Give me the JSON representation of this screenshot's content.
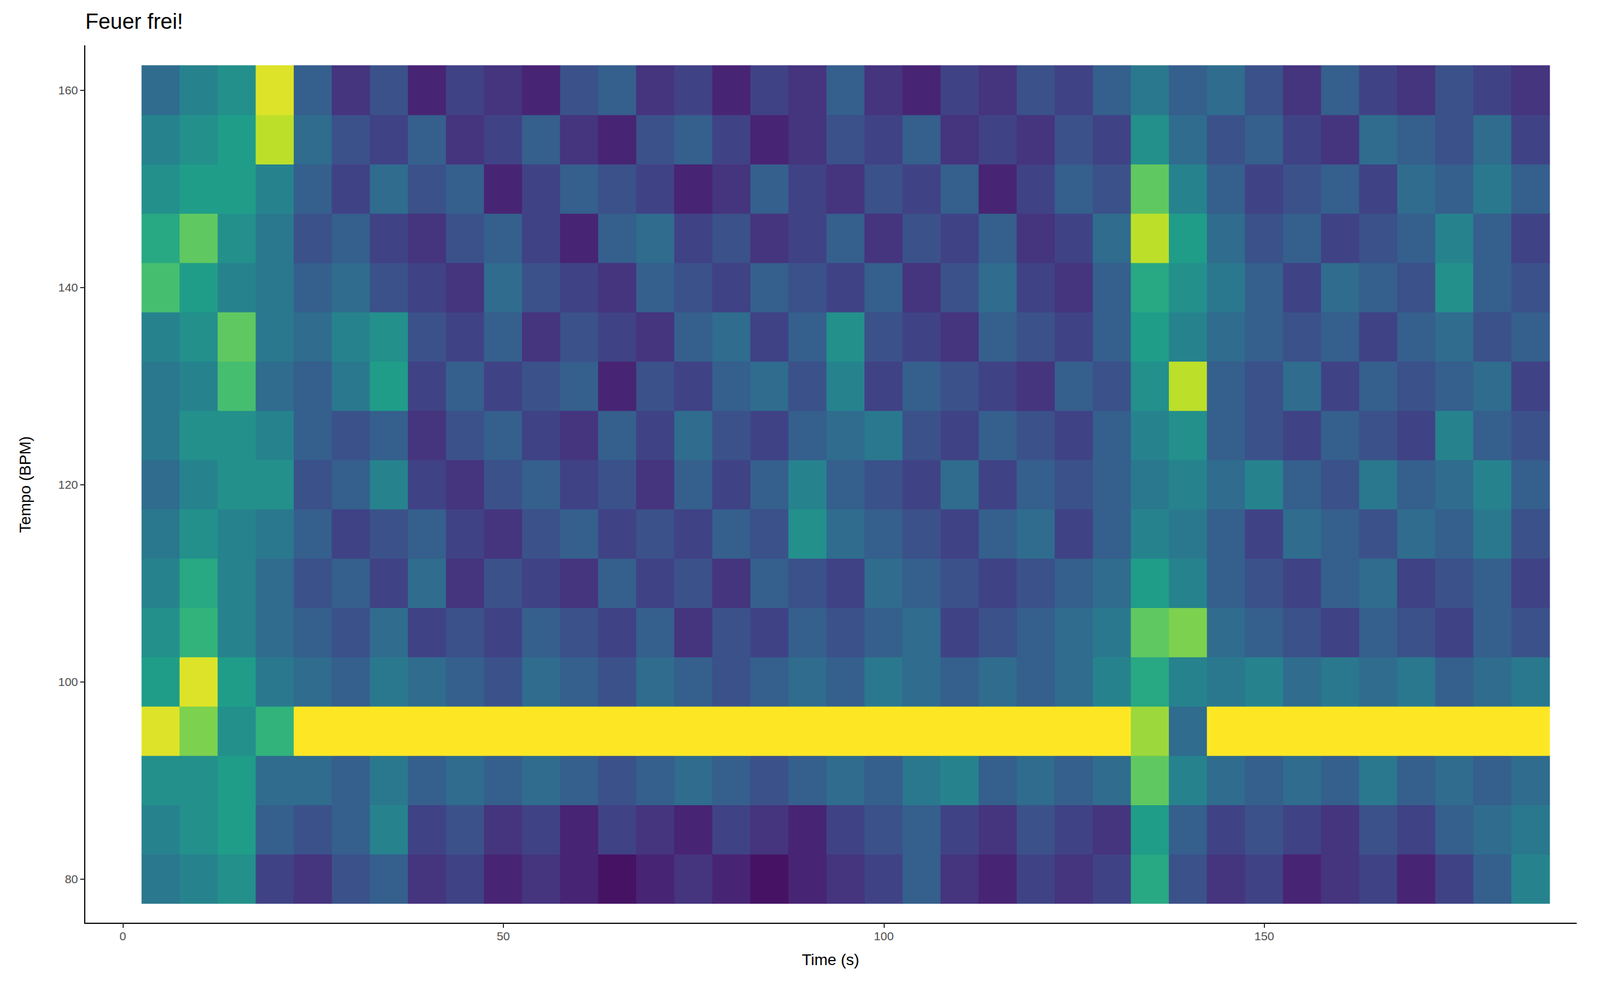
{
  "chart_data": {
    "type": "heatmap",
    "title": "Feuer frei!",
    "x_label": "Time (s)",
    "y_label": "Tempo (BPM)",
    "xlim": [
      -5,
      191
    ],
    "ylim": [
      75.5,
      164.5
    ],
    "xticks": [
      0,
      50,
      100,
      150
    ],
    "yticks": [
      80,
      100,
      120,
      140,
      160
    ],
    "grid": false,
    "zlim": [
      0,
      1
    ],
    "x": [
      5,
      10,
      15,
      20,
      25,
      30,
      35,
      40,
      45,
      50,
      55,
      60,
      65,
      70,
      75,
      80,
      85,
      90,
      95,
      100,
      105,
      110,
      115,
      120,
      125,
      130,
      135,
      140,
      145,
      150,
      155,
      160,
      165,
      170,
      175,
      180,
      185
    ],
    "y": [
      80,
      85,
      90,
      95,
      100,
      105,
      110,
      115,
      120,
      125,
      130,
      135,
      140,
      145,
      150,
      155,
      160
    ],
    "z": [
      [
        0.4,
        0.45,
        0.5,
        0.2,
        0.15,
        0.25,
        0.3,
        0.15,
        0.2,
        0.1,
        0.15,
        0.1,
        0.05,
        0.1,
        0.15,
        0.1,
        0.05,
        0.1,
        0.15,
        0.2,
        0.3,
        0.15,
        0.1,
        0.2,
        0.15,
        0.2,
        0.6,
        0.25,
        0.15,
        0.2,
        0.1,
        0.15,
        0.2,
        0.1,
        0.2,
        0.3,
        0.45
      ],
      [
        0.45,
        0.5,
        0.55,
        0.3,
        0.25,
        0.3,
        0.45,
        0.2,
        0.25,
        0.15,
        0.2,
        0.1,
        0.2,
        0.15,
        0.1,
        0.2,
        0.15,
        0.1,
        0.2,
        0.25,
        0.3,
        0.2,
        0.15,
        0.25,
        0.2,
        0.15,
        0.55,
        0.3,
        0.2,
        0.25,
        0.2,
        0.15,
        0.25,
        0.2,
        0.3,
        0.35,
        0.4
      ],
      [
        0.5,
        0.5,
        0.55,
        0.35,
        0.35,
        0.3,
        0.4,
        0.3,
        0.35,
        0.3,
        0.35,
        0.3,
        0.25,
        0.3,
        0.35,
        0.3,
        0.25,
        0.3,
        0.35,
        0.3,
        0.4,
        0.45,
        0.3,
        0.35,
        0.3,
        0.35,
        0.75,
        0.45,
        0.35,
        0.3,
        0.35,
        0.3,
        0.4,
        0.3,
        0.35,
        0.3,
        0.35
      ],
      [
        0.95,
        0.8,
        0.5,
        0.65,
        1,
        1,
        1,
        1,
        1,
        1,
        1,
        1,
        1,
        1,
        1,
        1,
        1,
        1,
        1,
        1,
        1,
        1,
        1,
        1,
        1,
        1,
        0.85,
        0.35,
        1,
        1,
        1,
        1,
        1,
        1,
        1,
        1,
        1
      ],
      [
        0.55,
        0.95,
        0.55,
        0.4,
        0.35,
        0.3,
        0.4,
        0.35,
        0.3,
        0.25,
        0.35,
        0.3,
        0.25,
        0.35,
        0.3,
        0.25,
        0.3,
        0.35,
        0.3,
        0.4,
        0.35,
        0.3,
        0.35,
        0.3,
        0.35,
        0.45,
        0.6,
        0.45,
        0.4,
        0.45,
        0.35,
        0.4,
        0.35,
        0.4,
        0.3,
        0.35,
        0.4
      ],
      [
        0.5,
        0.65,
        0.45,
        0.35,
        0.3,
        0.25,
        0.35,
        0.2,
        0.25,
        0.2,
        0.3,
        0.25,
        0.2,
        0.3,
        0.15,
        0.25,
        0.2,
        0.3,
        0.25,
        0.3,
        0.35,
        0.2,
        0.25,
        0.3,
        0.35,
        0.4,
        0.75,
        0.8,
        0.35,
        0.3,
        0.25,
        0.2,
        0.3,
        0.25,
        0.2,
        0.3,
        0.25
      ],
      [
        0.45,
        0.6,
        0.45,
        0.35,
        0.25,
        0.3,
        0.2,
        0.35,
        0.15,
        0.25,
        0.2,
        0.15,
        0.3,
        0.2,
        0.25,
        0.15,
        0.3,
        0.25,
        0.2,
        0.35,
        0.3,
        0.25,
        0.2,
        0.25,
        0.3,
        0.35,
        0.55,
        0.45,
        0.3,
        0.25,
        0.2,
        0.3,
        0.35,
        0.2,
        0.25,
        0.3,
        0.2
      ],
      [
        0.4,
        0.5,
        0.45,
        0.4,
        0.3,
        0.2,
        0.25,
        0.3,
        0.2,
        0.15,
        0.25,
        0.3,
        0.2,
        0.25,
        0.2,
        0.3,
        0.25,
        0.5,
        0.35,
        0.3,
        0.25,
        0.2,
        0.3,
        0.35,
        0.2,
        0.3,
        0.45,
        0.4,
        0.3,
        0.2,
        0.35,
        0.3,
        0.25,
        0.35,
        0.3,
        0.4,
        0.25
      ],
      [
        0.35,
        0.45,
        0.5,
        0.5,
        0.25,
        0.3,
        0.45,
        0.2,
        0.15,
        0.25,
        0.3,
        0.2,
        0.25,
        0.15,
        0.3,
        0.2,
        0.3,
        0.45,
        0.3,
        0.25,
        0.2,
        0.35,
        0.2,
        0.3,
        0.25,
        0.3,
        0.4,
        0.45,
        0.35,
        0.45,
        0.3,
        0.25,
        0.4,
        0.3,
        0.35,
        0.45,
        0.3
      ],
      [
        0.4,
        0.5,
        0.5,
        0.45,
        0.3,
        0.25,
        0.3,
        0.15,
        0.25,
        0.3,
        0.2,
        0.15,
        0.3,
        0.2,
        0.35,
        0.25,
        0.2,
        0.3,
        0.35,
        0.4,
        0.25,
        0.2,
        0.3,
        0.25,
        0.2,
        0.3,
        0.45,
        0.5,
        0.3,
        0.25,
        0.2,
        0.3,
        0.25,
        0.2,
        0.45,
        0.3,
        0.25
      ],
      [
        0.4,
        0.45,
        0.7,
        0.35,
        0.3,
        0.4,
        0.55,
        0.2,
        0.3,
        0.2,
        0.25,
        0.3,
        0.1,
        0.25,
        0.2,
        0.3,
        0.35,
        0.25,
        0.45,
        0.2,
        0.3,
        0.25,
        0.2,
        0.15,
        0.3,
        0.25,
        0.5,
        0.9,
        0.3,
        0.25,
        0.35,
        0.2,
        0.3,
        0.25,
        0.3,
        0.35,
        0.2
      ],
      [
        0.45,
        0.5,
        0.75,
        0.4,
        0.35,
        0.45,
        0.5,
        0.25,
        0.2,
        0.3,
        0.15,
        0.25,
        0.2,
        0.15,
        0.3,
        0.35,
        0.2,
        0.3,
        0.5,
        0.25,
        0.2,
        0.15,
        0.3,
        0.25,
        0.2,
        0.3,
        0.55,
        0.45,
        0.35,
        0.3,
        0.25,
        0.3,
        0.2,
        0.3,
        0.35,
        0.25,
        0.3
      ],
      [
        0.7,
        0.55,
        0.45,
        0.4,
        0.3,
        0.35,
        0.25,
        0.2,
        0.15,
        0.35,
        0.25,
        0.2,
        0.15,
        0.3,
        0.25,
        0.2,
        0.3,
        0.25,
        0.2,
        0.3,
        0.15,
        0.25,
        0.35,
        0.2,
        0.15,
        0.3,
        0.6,
        0.5,
        0.4,
        0.3,
        0.2,
        0.35,
        0.3,
        0.25,
        0.5,
        0.3,
        0.25
      ],
      [
        0.6,
        0.75,
        0.5,
        0.4,
        0.25,
        0.3,
        0.2,
        0.15,
        0.25,
        0.3,
        0.2,
        0.1,
        0.3,
        0.35,
        0.2,
        0.25,
        0.15,
        0.2,
        0.3,
        0.15,
        0.25,
        0.2,
        0.3,
        0.15,
        0.2,
        0.35,
        0.9,
        0.55,
        0.35,
        0.25,
        0.3,
        0.2,
        0.25,
        0.3,
        0.45,
        0.3,
        0.2
      ],
      [
        0.5,
        0.55,
        0.55,
        0.45,
        0.3,
        0.2,
        0.35,
        0.25,
        0.3,
        0.1,
        0.2,
        0.3,
        0.25,
        0.2,
        0.1,
        0.15,
        0.3,
        0.2,
        0.15,
        0.25,
        0.2,
        0.3,
        0.1,
        0.2,
        0.3,
        0.25,
        0.75,
        0.45,
        0.3,
        0.2,
        0.25,
        0.3,
        0.2,
        0.35,
        0.3,
        0.4,
        0.3
      ],
      [
        0.45,
        0.5,
        0.55,
        0.9,
        0.35,
        0.25,
        0.2,
        0.3,
        0.15,
        0.2,
        0.3,
        0.15,
        0.1,
        0.25,
        0.3,
        0.2,
        0.1,
        0.15,
        0.25,
        0.2,
        0.3,
        0.15,
        0.2,
        0.15,
        0.25,
        0.2,
        0.5,
        0.35,
        0.25,
        0.3,
        0.2,
        0.15,
        0.35,
        0.3,
        0.25,
        0.35,
        0.2
      ],
      [
        0.35,
        0.45,
        0.5,
        0.95,
        0.3,
        0.15,
        0.25,
        0.1,
        0.2,
        0.15,
        0.1,
        0.25,
        0.3,
        0.15,
        0.2,
        0.1,
        0.2,
        0.15,
        0.3,
        0.15,
        0.1,
        0.2,
        0.15,
        0.25,
        0.2,
        0.3,
        0.4,
        0.3,
        0.35,
        0.25,
        0.15,
        0.3,
        0.2,
        0.15,
        0.25,
        0.2,
        0.15
      ]
    ]
  }
}
